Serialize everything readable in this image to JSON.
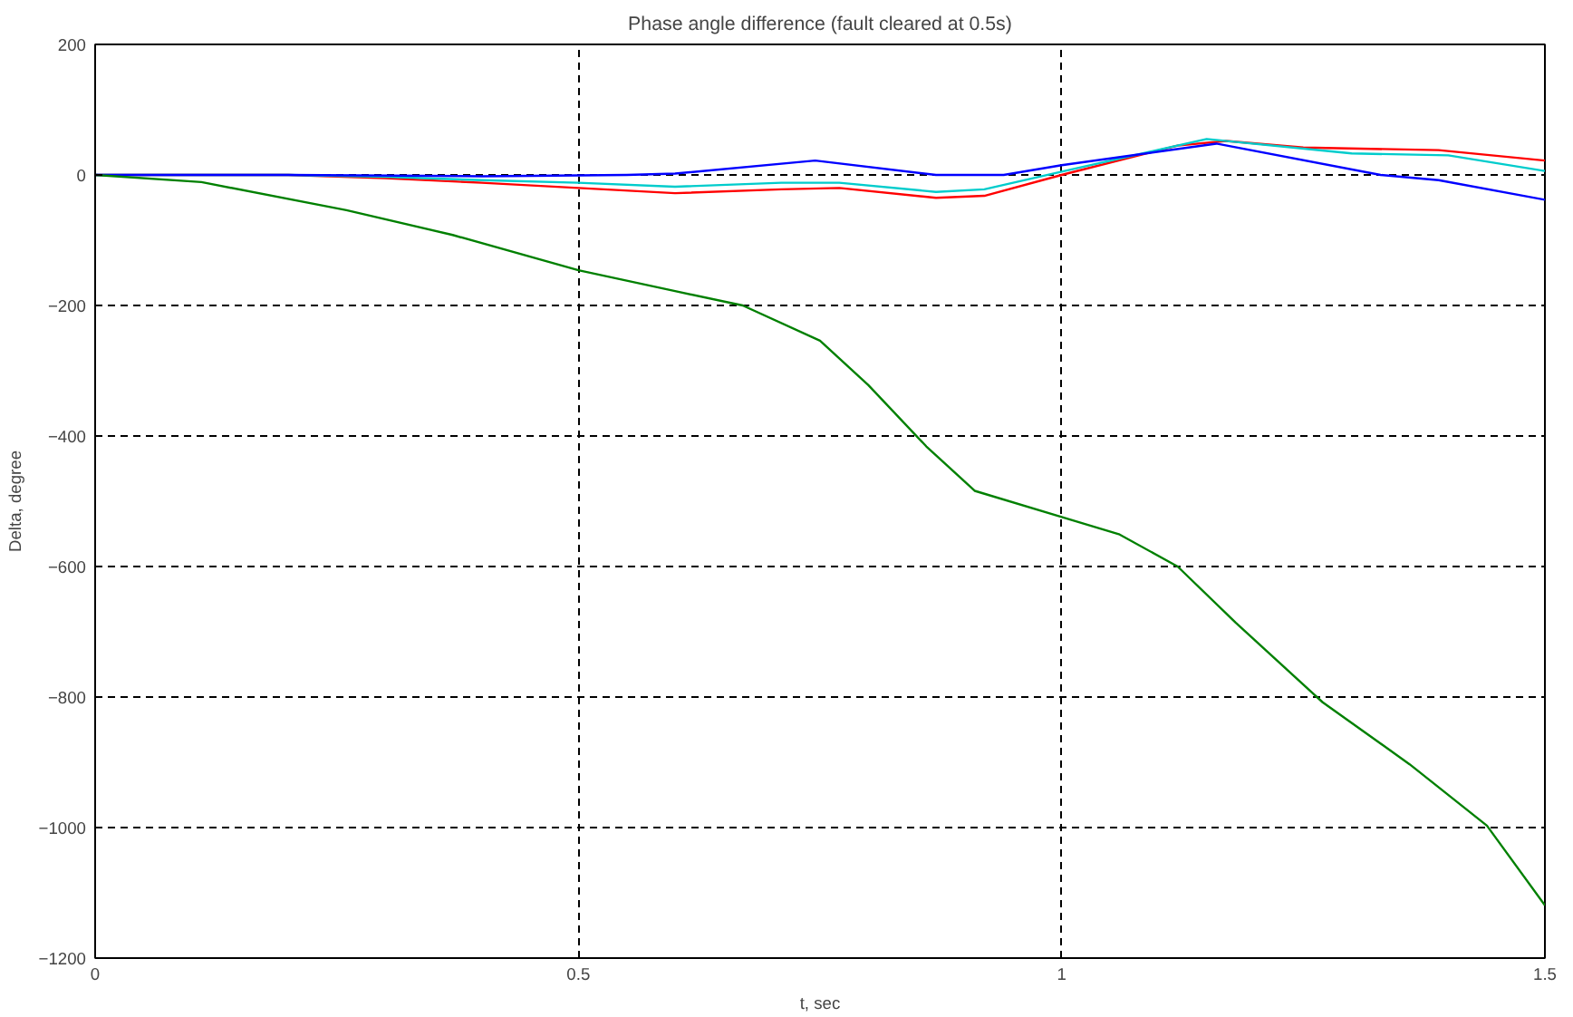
{
  "chart_data": {
    "type": "line",
    "title": "Phase angle difference (fault cleared at 0.5s)",
    "xlabel": "t, sec",
    "ylabel": "Delta, degree",
    "xlim": [
      0,
      1.5
    ],
    "ylim": [
      -1200,
      200
    ],
    "xticks": [
      0,
      0.5,
      1,
      1.5
    ],
    "yticks": [
      -1200,
      -1000,
      -800,
      -600,
      -400,
      -200,
      0,
      200
    ],
    "grid": true,
    "line_style": "solid",
    "marker": "none",
    "series": [
      {
        "color": "#ff0000",
        "x": [
          0,
          0.2,
          0.3,
          0.4,
          0.5,
          0.6,
          0.71,
          0.77,
          0.87,
          0.92,
          1.0,
          1.12,
          1.17,
          1.25,
          1.39,
          1.5
        ],
        "values": [
          0,
          0,
          -5,
          -12,
          -20,
          -28,
          -22,
          -20,
          -35,
          -32,
          0,
          45,
          52,
          42,
          38,
          22
        ]
      },
      {
        "color": "#00cccc",
        "x": [
          0,
          0.2,
          0.3,
          0.4,
          0.5,
          0.6,
          0.71,
          0.77,
          0.87,
          0.92,
          1.0,
          1.15,
          1.3,
          1.4,
          1.5
        ],
        "values": [
          0,
          0,
          -3,
          -8,
          -12,
          -18,
          -12,
          -12,
          -26,
          -22,
          5,
          55,
          33,
          30,
          6
        ]
      },
      {
        "color": "#0000ff",
        "x": [
          0,
          0.2,
          0.4,
          0.55,
          0.6,
          0.745,
          0.87,
          0.94,
          1.0,
          1.16,
          1.33,
          1.39,
          1.5
        ],
        "values": [
          0,
          0,
          -2,
          0,
          2,
          22,
          0,
          0,
          15,
          48,
          0,
          -8,
          -38
        ]
      },
      {
        "color": "#008000",
        "x": [
          0,
          0.11,
          0.26,
          0.37,
          0.5,
          0.6,
          0.67,
          0.75,
          0.8,
          0.86,
          0.91,
          1.0,
          1.06,
          1.12,
          1.18,
          1.27,
          1.36,
          1.44,
          1.5
        ],
        "values": [
          0,
          -11,
          -54,
          -92,
          -146,
          -178,
          -200,
          -254,
          -322,
          -416,
          -484,
          -524,
          -551,
          -600,
          -686,
          -808,
          -903,
          -997,
          -1119
        ]
      }
    ]
  }
}
